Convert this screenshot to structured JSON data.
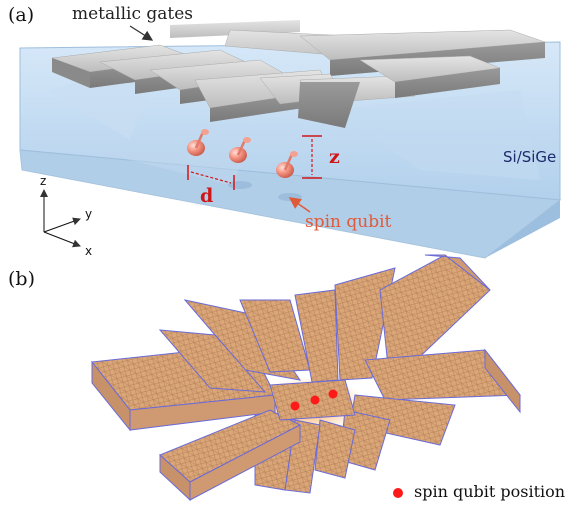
{
  "panel_a": {
    "label": "(a)",
    "gates_label": "metallic gates",
    "substrate_label": "Si/SiGe",
    "qubit_label": "spin qubit",
    "distance_label": "d",
    "height_label": "z",
    "axes": {
      "z": "z",
      "y": "y",
      "x": "x"
    },
    "colors": {
      "substrate": "#bcd8f0",
      "gates": "#c9c9c9",
      "qubit": "#f08a7a",
      "annotation": "#d01616"
    }
  },
  "panel_b": {
    "label": "(b)",
    "legend_label": "spin qubit position",
    "colors": {
      "gate_fill": "#d9a074",
      "mesh": "#6b6bd6",
      "qubit_marker": "#ff1a1a"
    }
  }
}
